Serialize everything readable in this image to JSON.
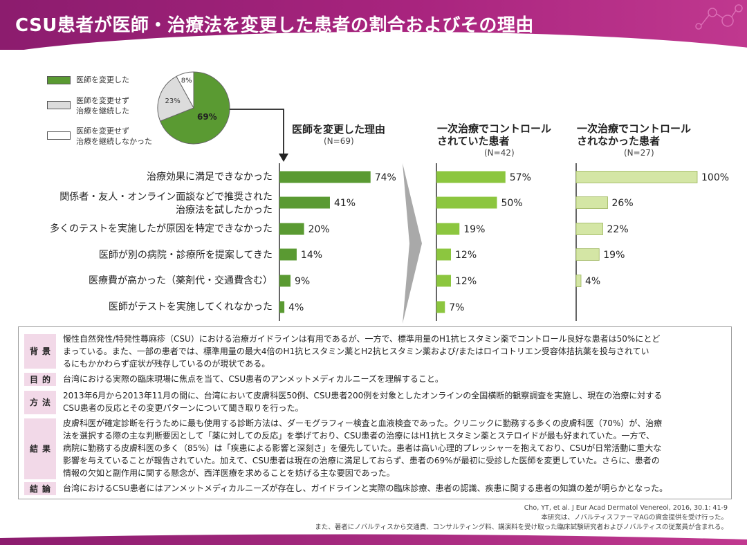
{
  "header": {
    "title": "CSU患者が医師・治療法を変更した患者の割合およびその理由"
  },
  "colors": {
    "header": "#a8247e",
    "changed": "#5a9a32",
    "continued": "#dcdcdc",
    "not_continued": "#ffffff",
    "col1": "#5a9a32",
    "col2": "#8cc63f",
    "col3": "#d4e6a5",
    "tag_bg": "#f2d9e8",
    "arrow": "#a9a9a9"
  },
  "legend": [
    {
      "label_lines": [
        "医師を変更した"
      ],
      "color": "#5a9a32"
    },
    {
      "label_lines": [
        "医師を変更せず",
        "治療を継続した"
      ],
      "color": "#dcdcdc"
    },
    {
      "label_lines": [
        "医師を変更せず",
        "治療を継続しなかった"
      ],
      "color": "#ffffff"
    }
  ],
  "pie": {
    "slices": [
      {
        "label": "69%",
        "value": 69,
        "color": "#5a9a32"
      },
      {
        "label": "23%",
        "value": 23,
        "color": "#dcdcdc"
      },
      {
        "label": "8%",
        "value": 8,
        "color": "#ffffff"
      }
    ]
  },
  "chart_data": {
    "type": "bar",
    "orientation": "horizontal",
    "categories": [
      [
        "治療効果に満足できなかった"
      ],
      [
        "関係者・友人・オンライン面談などで推奨された",
        "治療法を試したかった"
      ],
      [
        "多くのテストを実施したが原因を特定できなかった"
      ],
      [
        "医師が別の病院・診療所を提案してきた"
      ],
      [
        "医療費が高かった（薬剤代・交通費含む）"
      ],
      [
        "医師がテストを実施してくれなかった"
      ]
    ],
    "series": [
      {
        "name": "医師を変更した理由",
        "n": "(N=69)",
        "title_lines": [
          "医師を変更した理由"
        ],
        "values": [
          74,
          41,
          20,
          14,
          9,
          4
        ],
        "labels": [
          "74%",
          "41%",
          "20%",
          "14%",
          "9%",
          "4%"
        ],
        "color": "#5a9a32",
        "max": 100
      },
      {
        "name": "一次治療でコントロールされていた患者",
        "n": "(N=42)",
        "title_lines": [
          "一次治療でコントロール",
          "されていた患者"
        ],
        "values": [
          57,
          50,
          19,
          12,
          12,
          7
        ],
        "labels": [
          "57%",
          "50%",
          "19%",
          "12%",
          "12%",
          "7%"
        ],
        "color": "#8cc63f",
        "max": 100
      },
      {
        "name": "一次治療でコントロールされなかった患者",
        "n": "(N=27)",
        "title_lines": [
          "一次治療でコントロール",
          "されなかった患者"
        ],
        "values": [
          100,
          26,
          22,
          19,
          4,
          null
        ],
        "labels": [
          "100%",
          "26%",
          "22%",
          "19%",
          "4%",
          ""
        ],
        "color": "#d4e6a5",
        "max": 100
      }
    ]
  },
  "summary": [
    {
      "tag": "背景",
      "lines": [
        "慢性自然発性/特発性蕁麻疹（CSU）における治療ガイドラインは有用であるが、一方で、標準用量のH1抗ヒスタミン薬でコントロール良好な患者は50%にとど",
        "まっている。また、一部の患者では、標準用量の最大4倍のH1抗ヒスタミン薬とH2抗ヒスタミン薬および/またはロイコトリエン受容体拮抗薬を投与されてい",
        "るにもかかわらず症状が残存しているのが現状である。"
      ]
    },
    {
      "tag": "目的",
      "lines": [
        "台湾における実際の臨床現場に焦点を当て、CSU患者のアンメットメディカルニーズを理解すること。"
      ]
    },
    {
      "tag": "方法",
      "lines": [
        "2013年6月から2013年11月の間に、台湾において皮膚科医50例、CSU患者200例を対象としたオンラインの全国横断的観察調査を実施し、現在の治療に対する",
        "CSU患者の反応とその変更パターンについて聞き取りを行った。"
      ]
    },
    {
      "tag": "結果",
      "lines": [
        "皮膚科医が確定診断を行うために最も使用する診断方法は、ダーモグラフィー検査と血液検査であった。クリニックに勤務する多くの皮膚科医（70%）が、治療",
        "法を選択する際の主な判断要因として「薬に対しての反応」を挙げており、CSU患者の治療にはH1抗ヒスタミン薬とステロイドが最も好まれていた。一方で、",
        "病院に勤務する皮膚科医の多く（85%）は「疾患による影響と深刻さ」を優先していた。患者は高い心理的プレッシャーを抱えており、CSUが日常活動に重大な",
        "影響を与えていることが報告されていた。加えて、CSU患者は現在の治療に満足しておらず、患者の69%が最初に受診した医師を変更していた。さらに、患者の",
        "情報の欠如と副作用に関する懸念が、西洋医療を求めることを妨げる主な要因であった。"
      ]
    },
    {
      "tag": "結論",
      "lines": [
        "台湾におけるCSU患者にはアンメットメディカルニーズが存在し、ガイドラインと実際の臨床診療、患者の認識、疾患に関する患者の知識の差が明らかとなった。"
      ]
    }
  ],
  "references": [
    "Cho, YT, et al. J Eur Acad Dermatol Venereol, 2016, 30.1: 41-9",
    "本研究は、ノバルティスファーマAGの資金提供を受け行った。",
    "また、著者にノバルティスから交通費、コンサルティング料、講演料を受け取った臨床試験研究者およびノバルティスの従業員が含まれる。"
  ]
}
